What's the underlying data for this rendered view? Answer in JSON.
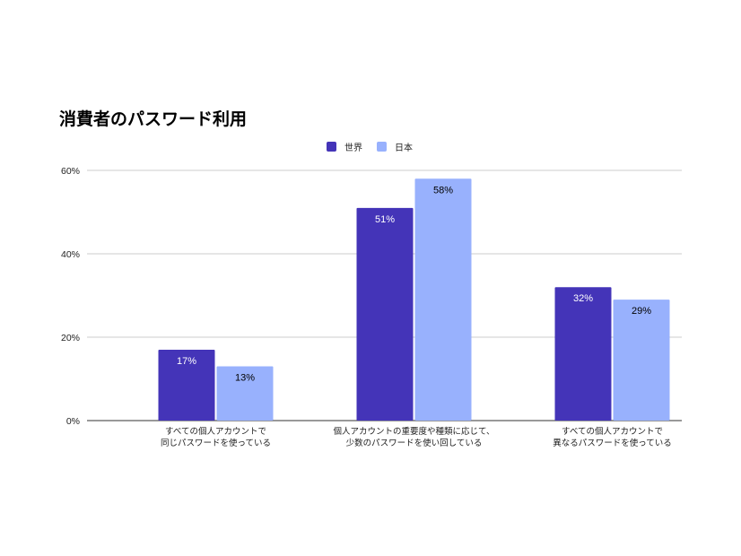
{
  "chart_data": {
    "type": "bar",
    "title": "消費者のパスワード利用",
    "categories": [
      [
        "すべての個人アカウントで",
        "同じパスワードを使っている"
      ],
      [
        "個人アカウントの重要度や種類に応じて、",
        "少数のパスワードを使い回している"
      ],
      [
        "すべての個人アカウントで",
        "異なるパスワードを使っている"
      ]
    ],
    "series": [
      {
        "name": "世界",
        "values": [
          17,
          51,
          32
        ],
        "labels": [
          "17%",
          "51%",
          "32%"
        ],
        "color": "#4434b8",
        "label_color": "#ffffff"
      },
      {
        "name": "日本",
        "values": [
          13,
          58,
          29
        ],
        "labels": [
          "13%",
          "58%",
          "29%"
        ],
        "color": "#98b1fd",
        "label_color": "#000000"
      }
    ],
    "yticks": [
      "0%",
      "20%",
      "40%",
      "60%"
    ],
    "ylim": [
      0,
      60
    ],
    "grid": true,
    "legend": "top-center"
  }
}
